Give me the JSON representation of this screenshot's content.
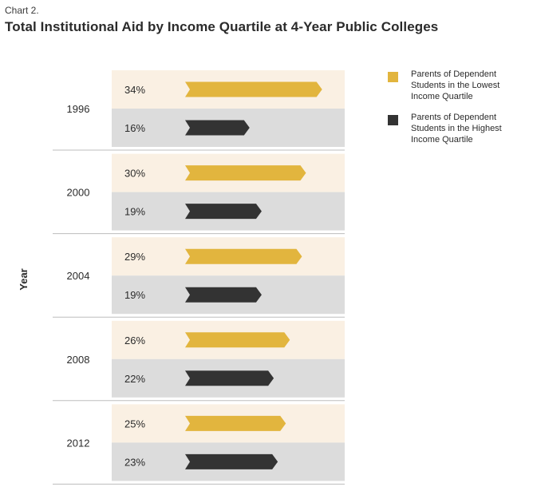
{
  "header": {
    "label": "Chart 2.",
    "title": "Total Institutional Aid by Income Quartile at 4-Year Public Colleges"
  },
  "colors": {
    "lowest": "#E2B53E",
    "highest": "#333333",
    "band_light": "#FAF0E3",
    "band_gray": "#DCDCDC"
  },
  "chart_data": {
    "type": "bar",
    "orientation": "horizontal",
    "title": "Total Institutional Aid by Income Quartile at 4-Year Public Colleges",
    "ylabel": "Year",
    "xlabel": "",
    "xlim": [
      0,
      50
    ],
    "categories": [
      "1996",
      "2000",
      "2004",
      "2008",
      "2012"
    ],
    "series": [
      {
        "name": "Parents of Dependent Students in the Lowest Income Quartile",
        "values": [
          34,
          30,
          29,
          26,
          25
        ],
        "labels": [
          "34%",
          "30%",
          "29%",
          "26%",
          "25%"
        ]
      },
      {
        "name": "Parents of Dependent Students in the Highest Income Quartile",
        "values": [
          16,
          19,
          19,
          22,
          23
        ],
        "labels": [
          "16%",
          "19%",
          "19%",
          "22%",
          "23%"
        ]
      }
    ],
    "legend_position": "top-right"
  }
}
